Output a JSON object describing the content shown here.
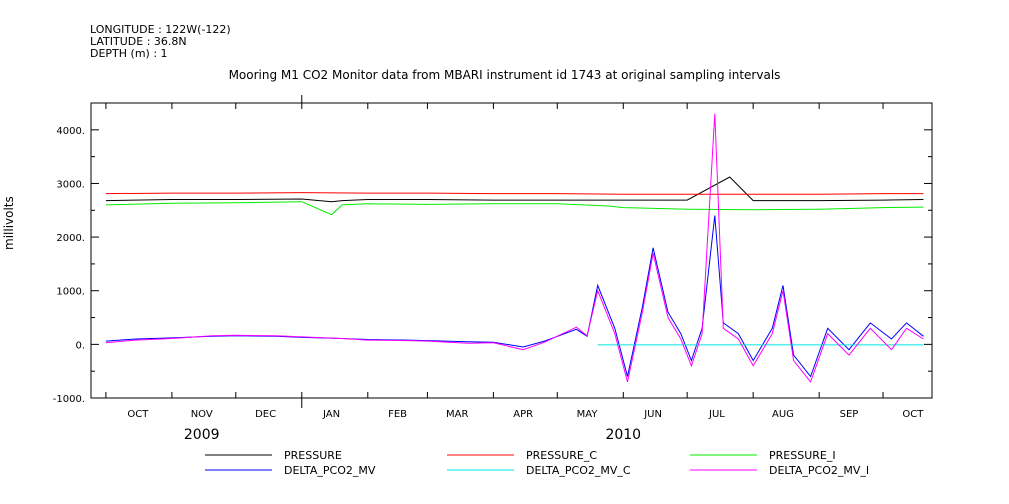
{
  "header": {
    "longitude": "LONGITUDE : 122W(-122)",
    "latitude": "LATITUDE : 36.8N",
    "depth": "DEPTH (m) : 1"
  },
  "chart_data": {
    "type": "line",
    "title": "Mooring M1 CO2 Monitor data from MBARI instrument id 1743 at original sampling intervals",
    "ylabel": "millivolts",
    "xlabel": "",
    "ylim": [
      -1000,
      4500
    ],
    "yticks": [
      -1000,
      0,
      1000,
      2000,
      3000,
      4000
    ],
    "ytick_labels": [
      "-1000.",
      "0.",
      "1000.",
      "2000.",
      "3000.",
      "4000."
    ],
    "xlim": [
      "2009-09-24",
      "2010-10-24"
    ],
    "months": [
      "OCT",
      "NOV",
      "DEC",
      "JAN",
      "FEB",
      "MAR",
      "APR",
      "MAY",
      "JUN",
      "JUL",
      "AUG",
      "SEP",
      "OCT"
    ],
    "month_dates": [
      "2009-10-16",
      "2009-11-15",
      "2009-12-15",
      "2010-01-15",
      "2010-02-15",
      "2010-03-15",
      "2010-04-15",
      "2010-05-15",
      "2010-06-15",
      "2010-07-15",
      "2010-08-15",
      "2010-09-15",
      "2010-10-15"
    ],
    "years": [
      {
        "label": "2009",
        "date": "2009-11-15"
      },
      {
        "label": "2010",
        "date": "2010-06-01"
      }
    ],
    "legend_position": "bottom",
    "grid": false,
    "series": [
      {
        "name": "PRESSURE",
        "color": "#000000",
        "points": [
          [
            "2009-10-01",
            2680
          ],
          [
            "2009-11-01",
            2700
          ],
          [
            "2009-12-01",
            2700
          ],
          [
            "2010-01-01",
            2710
          ],
          [
            "2010-01-15",
            2660
          ],
          [
            "2010-01-20",
            2680
          ],
          [
            "2010-02-01",
            2700
          ],
          [
            "2010-03-01",
            2700
          ],
          [
            "2010-04-01",
            2690
          ],
          [
            "2010-05-01",
            2690
          ],
          [
            "2010-06-01",
            2690
          ],
          [
            "2010-07-01",
            2690
          ],
          [
            "2010-07-21",
            3120
          ],
          [
            "2010-08-01",
            2680
          ],
          [
            "2010-09-01",
            2680
          ],
          [
            "2010-10-01",
            2690
          ],
          [
            "2010-10-20",
            2700
          ]
        ]
      },
      {
        "name": "PRESSURE_C",
        "color": "#ff0000",
        "points": [
          [
            "2009-10-01",
            2810
          ],
          [
            "2009-11-01",
            2820
          ],
          [
            "2009-12-01",
            2820
          ],
          [
            "2010-01-01",
            2830
          ],
          [
            "2010-02-01",
            2820
          ],
          [
            "2010-03-01",
            2820
          ],
          [
            "2010-04-01",
            2810
          ],
          [
            "2010-05-01",
            2810
          ],
          [
            "2010-06-01",
            2800
          ],
          [
            "2010-07-01",
            2800
          ],
          [
            "2010-08-01",
            2800
          ],
          [
            "2010-09-01",
            2800
          ],
          [
            "2010-10-01",
            2810
          ],
          [
            "2010-10-20",
            2810
          ]
        ]
      },
      {
        "name": "PRESSURE_I",
        "color": "#00ee00",
        "points": [
          [
            "2009-10-01",
            2600
          ],
          [
            "2009-11-01",
            2630
          ],
          [
            "2009-12-01",
            2640
          ],
          [
            "2010-01-01",
            2660
          ],
          [
            "2010-01-15",
            2420
          ],
          [
            "2010-01-20",
            2600
          ],
          [
            "2010-02-01",
            2620
          ],
          [
            "2010-03-01",
            2610
          ],
          [
            "2010-04-01",
            2620
          ],
          [
            "2010-05-01",
            2620
          ],
          [
            "2010-05-25",
            2580
          ],
          [
            "2010-06-01",
            2550
          ],
          [
            "2010-07-01",
            2520
          ],
          [
            "2010-08-01",
            2510
          ],
          [
            "2010-09-01",
            2520
          ],
          [
            "2010-10-01",
            2550
          ],
          [
            "2010-10-20",
            2560
          ]
        ]
      },
      {
        "name": "DELTA_PCO2_MV",
        "color": "#0000ff",
        "points": [
          [
            "2009-10-01",
            60
          ],
          [
            "2009-10-15",
            100
          ],
          [
            "2009-11-01",
            120
          ],
          [
            "2009-11-20",
            150
          ],
          [
            "2009-12-01",
            160
          ],
          [
            "2009-12-20",
            150
          ],
          [
            "2010-01-01",
            130
          ],
          [
            "2010-01-20",
            110
          ],
          [
            "2010-02-01",
            90
          ],
          [
            "2010-02-20",
            80
          ],
          [
            "2010-03-01",
            70
          ],
          [
            "2010-03-20",
            50
          ],
          [
            "2010-04-01",
            40
          ],
          [
            "2010-04-15",
            -50
          ],
          [
            "2010-04-25",
            60
          ],
          [
            "2010-05-10",
            280
          ],
          [
            "2010-05-15",
            150
          ],
          [
            "2010-05-20",
            1100
          ],
          [
            "2010-05-28",
            300
          ],
          [
            "2010-06-03",
            -600
          ],
          [
            "2010-06-10",
            700
          ],
          [
            "2010-06-15",
            1800
          ],
          [
            "2010-06-22",
            600
          ],
          [
            "2010-06-28",
            200
          ],
          [
            "2010-07-03",
            -300
          ],
          [
            "2010-07-08",
            300
          ],
          [
            "2010-07-14",
            2400
          ],
          [
            "2010-07-18",
            400
          ],
          [
            "2010-07-25",
            200
          ],
          [
            "2010-08-01",
            -300
          ],
          [
            "2010-08-10",
            300
          ],
          [
            "2010-08-15",
            1100
          ],
          [
            "2010-08-20",
            -200
          ],
          [
            "2010-08-28",
            -600
          ],
          [
            "2010-09-05",
            300
          ],
          [
            "2010-09-15",
            -100
          ],
          [
            "2010-09-25",
            400
          ],
          [
            "2010-10-05",
            100
          ],
          [
            "2010-10-12",
            400
          ],
          [
            "2010-10-20",
            150
          ]
        ]
      },
      {
        "name": "DELTA_PCO2_MV_C",
        "color": "#00e5e5",
        "points": [
          [
            "2010-05-20",
            -10
          ],
          [
            "2010-10-20",
            -10
          ]
        ]
      },
      {
        "name": "DELTA_PCO2_MV_I",
        "color": "#ff00ff",
        "points": [
          [
            "2009-10-01",
            30
          ],
          [
            "2009-10-15",
            80
          ],
          [
            "2009-11-01",
            110
          ],
          [
            "2009-11-20",
            160
          ],
          [
            "2009-12-01",
            170
          ],
          [
            "2009-12-20",
            160
          ],
          [
            "2010-01-01",
            140
          ],
          [
            "2010-01-20",
            110
          ],
          [
            "2010-02-01",
            80
          ],
          [
            "2010-02-20",
            70
          ],
          [
            "2010-03-01",
            60
          ],
          [
            "2010-03-20",
            20
          ],
          [
            "2010-04-01",
            30
          ],
          [
            "2010-04-15",
            -100
          ],
          [
            "2010-04-25",
            40
          ],
          [
            "2010-05-10",
            320
          ],
          [
            "2010-05-15",
            160
          ],
          [
            "2010-05-20",
            1000
          ],
          [
            "2010-05-28",
            200
          ],
          [
            "2010-06-03",
            -700
          ],
          [
            "2010-06-10",
            600
          ],
          [
            "2010-06-15",
            1700
          ],
          [
            "2010-06-22",
            500
          ],
          [
            "2010-06-28",
            100
          ],
          [
            "2010-07-03",
            -400
          ],
          [
            "2010-07-08",
            200
          ],
          [
            "2010-07-14",
            4300
          ],
          [
            "2010-07-18",
            300
          ],
          [
            "2010-07-25",
            100
          ],
          [
            "2010-08-01",
            -400
          ],
          [
            "2010-08-10",
            200
          ],
          [
            "2010-08-15",
            1000
          ],
          [
            "2010-08-20",
            -300
          ],
          [
            "2010-08-28",
            -700
          ],
          [
            "2010-09-05",
            200
          ],
          [
            "2010-09-15",
            -200
          ],
          [
            "2010-09-25",
            300
          ],
          [
            "2010-10-05",
            -100
          ],
          [
            "2010-10-12",
            300
          ],
          [
            "2010-10-20",
            100
          ]
        ]
      }
    ]
  }
}
